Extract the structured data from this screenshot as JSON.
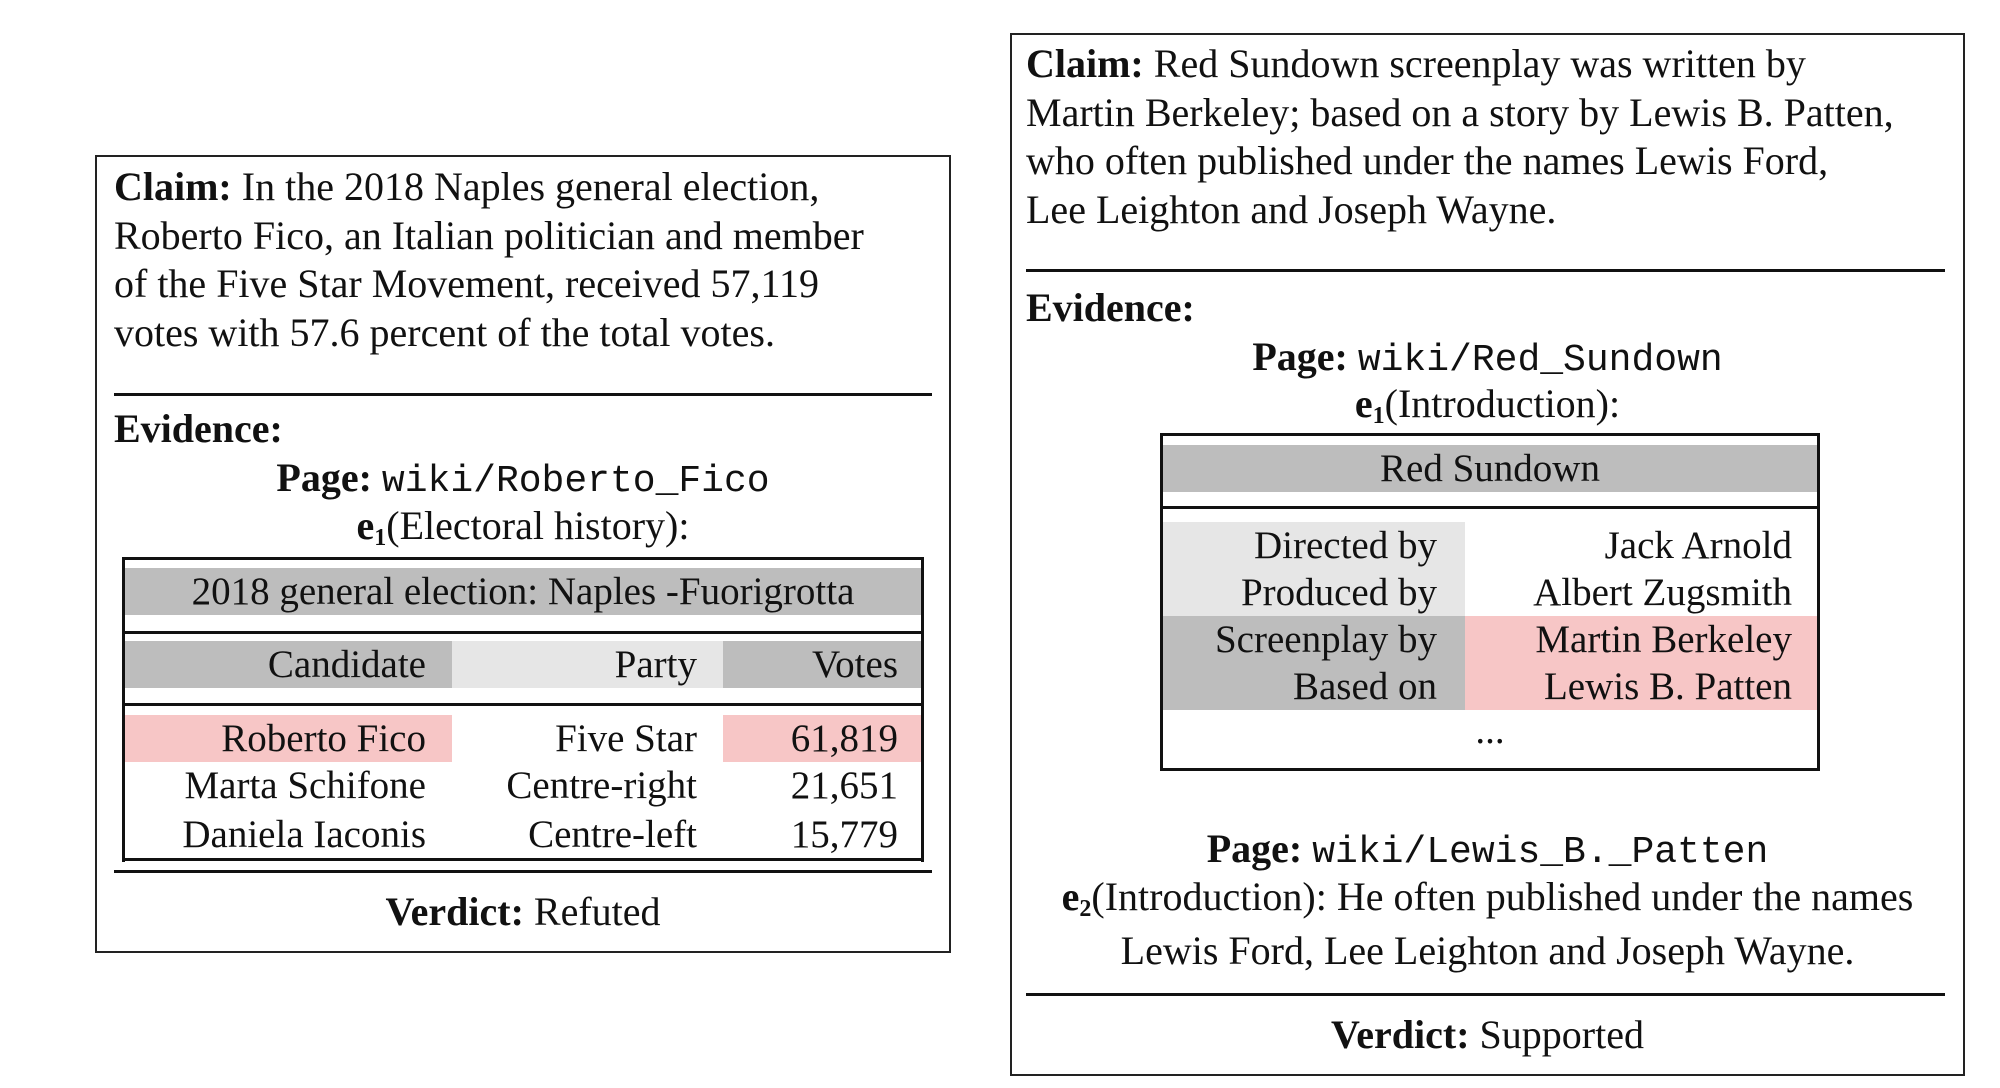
{
  "colors": {
    "header_gray": "#bdbdbd",
    "light_gray": "#e6e6e6",
    "highlight_pink": "#f7c6c6",
    "text": "#111111"
  },
  "panel1": {
    "claim_label": "Claim:",
    "claim_lines": [
      "In the 2018 Naples general election,",
      "Roberto Fico, an Italian politician and member",
      "of the Five Star Movement, received 57,119",
      "votes with 57.6 percent of the total votes."
    ],
    "evidence_label": "Evidence:",
    "page_label": "Page:",
    "page_url": "wiki/Roberto_Fico",
    "evidence_id": "e",
    "evidence_sub": "1",
    "evidence_section": "(Electoral history):",
    "table": {
      "title": "2018 general election: Naples -Fuorigrotta",
      "headers": [
        "Candidate",
        "Party",
        "Votes"
      ],
      "rows": [
        [
          "Roberto Fico",
          "Five Star",
          "61,819"
        ],
        [
          "Marta Schifone",
          "Centre-right",
          "21,651"
        ],
        [
          "Daniela Iaconis",
          "Centre-left",
          "15,779"
        ]
      ]
    },
    "verdict_label": "Verdict:",
    "verdict": "Refuted"
  },
  "panel2": {
    "claim_label": "Claim:",
    "claim_lines": [
      "Red Sundown screenplay was written by",
      "Martin Berkeley; based on a story by Lewis B. Patten,",
      "who often published under the names Lewis Ford,",
      "Lee Leighton and Joseph Wayne."
    ],
    "evidence_label": "Evidence:",
    "page_label": "Page:",
    "page_url": "wiki/Red_Sundown",
    "evidence_id": "e",
    "evidence_sub": "1",
    "evidence_section": "(Introduction):",
    "infobox": {
      "title": "Red Sundown",
      "rows": [
        [
          "Directed by",
          "Jack Arnold"
        ],
        [
          "Produced by",
          "Albert Zugsmith"
        ],
        [
          "Screenplay by",
          "Martin Berkeley"
        ],
        [
          "Based on",
          "Lewis B. Patten"
        ]
      ],
      "ellipsis": "..."
    },
    "page2_label": "Page:",
    "page2_url": "wiki/Lewis_B._Patten",
    "evidence2_id": "e",
    "evidence2_sub": "2",
    "evidence2_line1": "(Introduction): He often published under the names",
    "evidence2_line2": "Lewis Ford, Lee Leighton and Joseph Wayne.",
    "verdict_label": "Verdict:",
    "verdict": "Supported"
  }
}
